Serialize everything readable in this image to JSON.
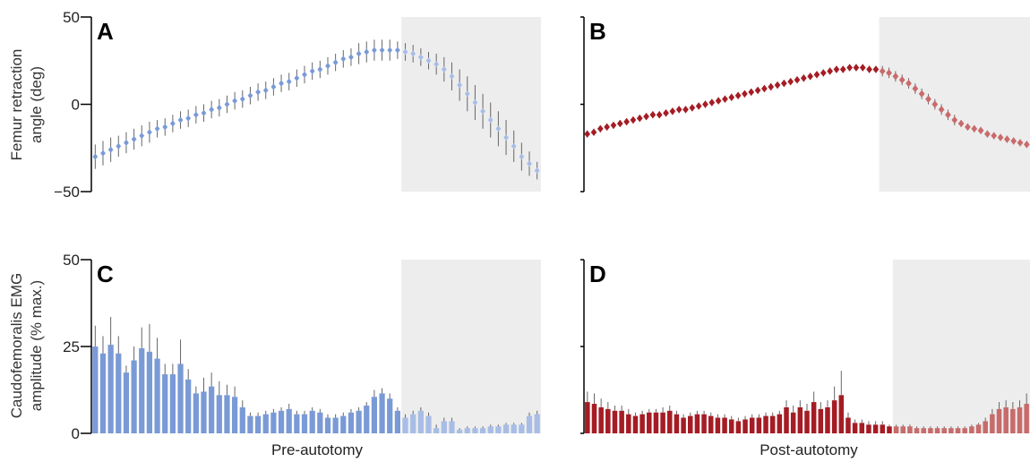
{
  "figure": {
    "ylabel_top_line1": "Femur retraction",
    "ylabel_top_line2": "angle (deg)",
    "ylabel_bottom_line1": "Caudofemoralis EMG",
    "ylabel_bottom_line2": "amplitude (% max.)",
    "xlabel_left": "Pre-autotomy",
    "xlabel_right": "Post-autotomy",
    "colors": {
      "pre": "#7a9ad6",
      "pre_light": "#a8bde6",
      "post": "#a51c24",
      "post_light": "#c86b6b",
      "shade": "#ededed",
      "error": "#666666"
    }
  },
  "chart_data": [
    {
      "panel": "A",
      "type": "scatter",
      "ylim": [
        -50,
        50
      ],
      "yticks": [
        "50",
        "0",
        "−50"
      ],
      "shaded_from_index": 40,
      "values": [
        -30,
        -28,
        -26,
        -24,
        -22,
        -20,
        -18,
        -16,
        -14,
        -13,
        -11,
        -9,
        -8,
        -6,
        -5,
        -3,
        -2,
        0,
        2,
        3,
        5,
        7,
        8,
        10,
        12,
        13,
        15,
        17,
        19,
        20,
        22,
        24,
        26,
        27,
        29,
        30,
        31,
        31,
        31,
        31,
        30,
        29,
        27,
        25,
        23,
        20,
        16,
        11,
        6,
        1,
        -4,
        -9,
        -14,
        -19,
        -24,
        -30,
        -34,
        -38
      ],
      "errors": [
        7,
        7,
        7,
        6,
        6,
        6,
        6,
        6,
        5,
        5,
        5,
        5,
        5,
        5,
        5,
        5,
        5,
        5,
        5,
        5,
        5,
        5,
        5,
        5,
        5,
        5,
        5,
        5,
        5,
        5,
        5,
        5,
        5,
        5,
        6,
        6,
        6,
        6,
        6,
        5,
        5,
        5,
        5,
        5,
        6,
        7,
        8,
        9,
        10,
        10,
        10,
        10,
        10,
        10,
        9,
        8,
        7,
        5
      ]
    },
    {
      "panel": "B",
      "type": "scatter",
      "ylim": [
        -50,
        50
      ],
      "yticks": [],
      "shaded_from_index": 45,
      "values": [
        -17,
        -16,
        -14,
        -13,
        -12,
        -11,
        -10,
        -9,
        -8,
        -7,
        -6,
        -6,
        -5,
        -4,
        -3,
        -3,
        -2,
        -1,
        0,
        1,
        2,
        3,
        4,
        5,
        6,
        7,
        8,
        9,
        10,
        11,
        12,
        13,
        14,
        15,
        16,
        17,
        18,
        19,
        20,
        20,
        21,
        21,
        21,
        20,
        20,
        19,
        18,
        16,
        14,
        12,
        9,
        6,
        3,
        0,
        -3,
        -6,
        -9,
        -11,
        -13,
        -14,
        -15,
        -17,
        -18,
        -19,
        -20,
        -21,
        -22,
        -23
      ],
      "errors": [
        2,
        2,
        2,
        2,
        2,
        2,
        2,
        2,
        2,
        2,
        2,
        2,
        2,
        2,
        2,
        2,
        2,
        2,
        2,
        2,
        2,
        2,
        2,
        2,
        2,
        2,
        2,
        2,
        2,
        2,
        2,
        2,
        2,
        2,
        2,
        2,
        2,
        2,
        2,
        2,
        2,
        2,
        2,
        2,
        2,
        3,
        3,
        3,
        3,
        3,
        3,
        3,
        3,
        3,
        3,
        3,
        3,
        2,
        2,
        2,
        2,
        2,
        2,
        2,
        2,
        2,
        2,
        2
      ]
    },
    {
      "panel": "C",
      "type": "bar",
      "ylim": [
        0,
        50
      ],
      "yticks": [
        "50",
        "25",
        "0"
      ],
      "shaded_from_index": 40,
      "values": [
        25,
        23,
        25.5,
        23,
        17.5,
        21,
        24.5,
        23.5,
        21.5,
        17,
        17,
        20,
        15.5,
        11.5,
        12,
        13.5,
        11,
        11,
        10.5,
        7.5,
        5,
        5,
        5.5,
        6,
        6.5,
        7,
        5.5,
        5.5,
        6.5,
        6,
        4.5,
        4.5,
        5,
        6,
        6.5,
        8,
        10.5,
        11.5,
        10,
        6.5,
        4.5,
        5.5,
        6.5,
        5,
        1.5,
        3.5,
        3.5,
        1,
        1.5,
        1.5,
        1.5,
        2,
        2,
        2.5,
        2.5,
        2.5,
        5,
        5.5
      ],
      "errors": [
        6,
        5,
        8,
        5,
        2,
        4,
        6,
        8,
        6,
        3,
        3,
        7,
        3,
        2,
        4,
        4,
        4,
        3,
        3,
        2,
        1,
        1,
        1,
        1,
        1,
        1.5,
        1,
        1,
        1,
        1,
        1,
        1,
        1,
        1,
        1,
        1,
        2,
        1.5,
        1.5,
        1,
        1,
        1,
        1,
        1,
        1,
        1,
        1,
        0.5,
        0.5,
        0.5,
        0.5,
        0.5,
        0.5,
        0.5,
        0.5,
        0.5,
        1,
        1
      ]
    },
    {
      "panel": "D",
      "type": "bar",
      "ylim": [
        0,
        50
      ],
      "yticks": [],
      "shaded_from_index": 45,
      "values": [
        9,
        8.5,
        7.5,
        7,
        6.5,
        6.5,
        5.5,
        5,
        5.5,
        6,
        6,
        6,
        6.5,
        5.5,
        4.5,
        5,
        5.5,
        5.5,
        5,
        4.5,
        4.5,
        4,
        3.5,
        4,
        4.5,
        4.5,
        5,
        5,
        5.5,
        7.5,
        6,
        7.5,
        6.5,
        9,
        7,
        7.5,
        9.5,
        11,
        4.5,
        3,
        3,
        2.5,
        2.5,
        2.5,
        2,
        2,
        2,
        2,
        1.5,
        1.5,
        1.5,
        1.5,
        1.5,
        1.5,
        1.5,
        1.5,
        2,
        2.5,
        3.5,
        5.5,
        7,
        7.5,
        7,
        7.5,
        8.5
      ],
      "errors": [
        3,
        3,
        2.5,
        2,
        1.5,
        1.5,
        1.5,
        1,
        1,
        1,
        1,
        1.5,
        1.5,
        1,
        1,
        1,
        1,
        1,
        1,
        1,
        1,
        1,
        1,
        1,
        1,
        1,
        1,
        1,
        1,
        2,
        2,
        2,
        2,
        3,
        2,
        2,
        4,
        7,
        1.5,
        1,
        1,
        1,
        1,
        1,
        0.5,
        0.5,
        0.5,
        0.5,
        0.5,
        0.5,
        0.5,
        0.5,
        0.5,
        0.5,
        0.5,
        0.5,
        0.5,
        0.5,
        1,
        1.5,
        2,
        2,
        2,
        2,
        3
      ]
    }
  ]
}
